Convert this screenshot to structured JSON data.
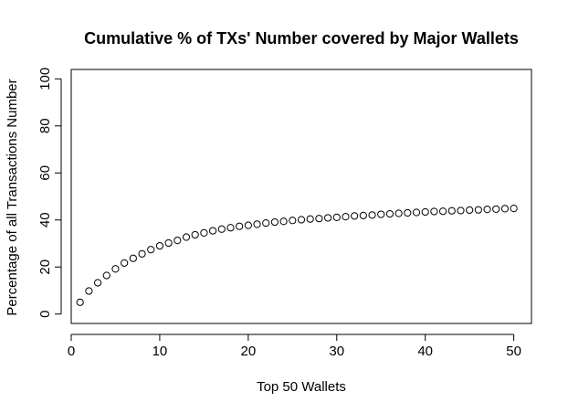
{
  "chart_data": {
    "type": "scatter",
    "title": "Cumulative % of TXs' Number covered by Major Wallets",
    "xlabel": "Top 50 Wallets",
    "ylabel": "Percentage of all Transactions Number",
    "xlim": [
      0,
      52
    ],
    "ylim": [
      -4,
      104
    ],
    "xticks": [
      0,
      10,
      20,
      30,
      40,
      50
    ],
    "yticks": [
      0,
      20,
      40,
      60,
      80,
      100
    ],
    "grid": false,
    "marker": "open-circle",
    "x": [
      1,
      2,
      3,
      4,
      5,
      6,
      7,
      8,
      9,
      10,
      11,
      12,
      13,
      14,
      15,
      16,
      17,
      18,
      19,
      20,
      21,
      22,
      23,
      24,
      25,
      26,
      27,
      28,
      29,
      30,
      31,
      32,
      33,
      34,
      35,
      36,
      37,
      38,
      39,
      40,
      41,
      42,
      43,
      44,
      45,
      46,
      47,
      48,
      49,
      50
    ],
    "y": [
      5.0,
      9.8,
      13.3,
      16.4,
      19.2,
      21.7,
      23.7,
      25.6,
      27.4,
      29.0,
      30.2,
      31.3,
      32.7,
      33.7,
      34.5,
      35.4,
      36.1,
      36.7,
      37.3,
      37.7,
      38.2,
      38.7,
      39.1,
      39.4,
      39.8,
      40.1,
      40.4,
      40.6,
      40.9,
      41.1,
      41.4,
      41.7,
      41.9,
      42.1,
      42.4,
      42.6,
      42.8,
      43.0,
      43.2,
      43.4,
      43.6,
      43.7,
      43.9,
      44.0,
      44.2,
      44.3,
      44.5,
      44.6,
      44.8,
      44.9
    ]
  }
}
